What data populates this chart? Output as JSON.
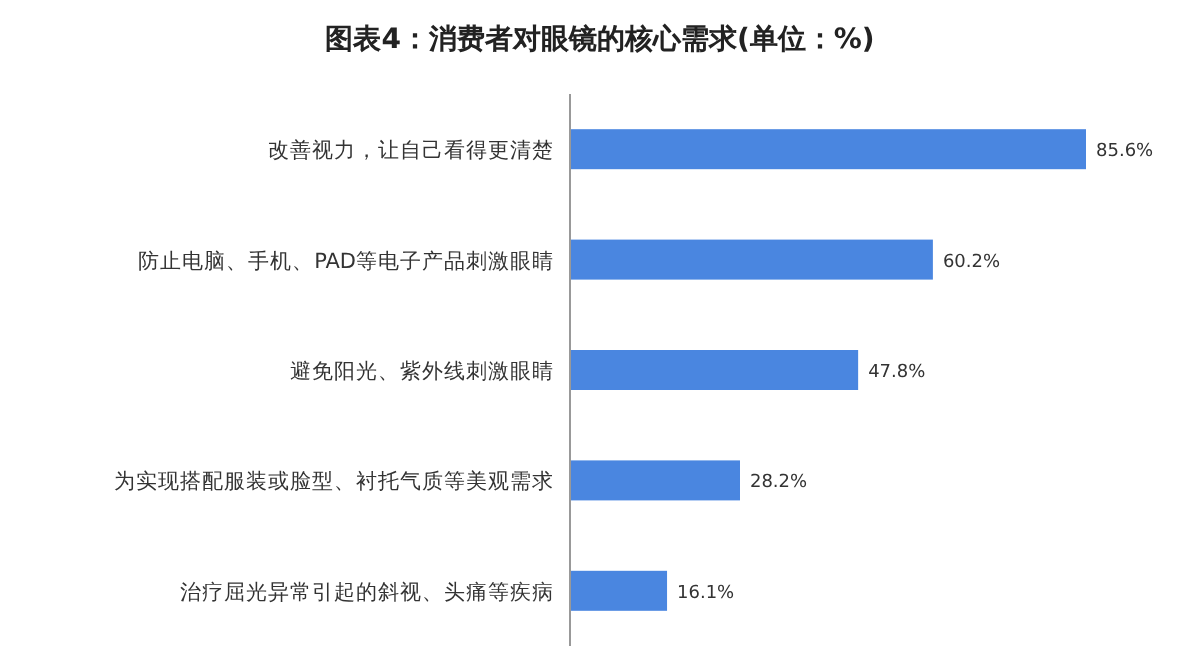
{
  "chart_data": {
    "type": "bar",
    "orientation": "horizontal",
    "title": "图表4：消费者对眼镜的核心需求(单位：%)",
    "categories": [
      "改善视力，让自己看得更清楚",
      "防止电脑、手机、PAD等电子产品刺激眼睛",
      "避免阳光、紫外线刺激眼睛",
      "为实现搭配服装或脸型、衬托气质等美观需求",
      "治疗屈光异常引起的斜视、头痛等疾病"
    ],
    "values": [
      85.6,
      60.2,
      47.8,
      28.2,
      16.1
    ],
    "value_labels": [
      "85.6%",
      "60.2%",
      "47.8%",
      "28.2%",
      "16.1%"
    ],
    "color": "#4a86e0"
  }
}
